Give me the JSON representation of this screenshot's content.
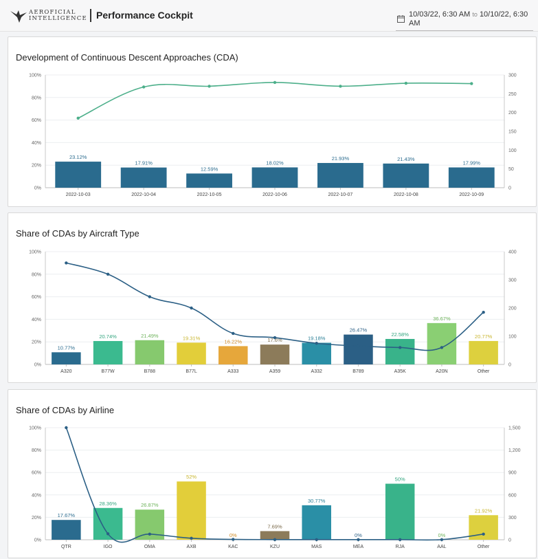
{
  "header": {
    "logo_line1": "AEROFICIAL",
    "logo_line2": "INTELLIGENCE",
    "title": "Performance Cockpit",
    "date_from": "10/03/22, 6:30 AM",
    "date_to_word": "to",
    "date_to": "10/10/22, 6:30 AM",
    "calendar_icon": "calendar-icon"
  },
  "cards": {
    "cda": {
      "title": "Development of Continuous Descent Approaches (CDA)"
    },
    "aircraft": {
      "title": "Share of CDAs by Aircraft Type"
    },
    "airline": {
      "title": "Share of CDAs by Airline"
    }
  },
  "chart_data": [
    {
      "id": "cda",
      "type": "bar",
      "categories": [
        "2022-10-03",
        "2022-10-04",
        "2022-10-05",
        "2022-10-06",
        "2022-10-07",
        "2022-10-08",
        "2022-10-09"
      ],
      "series": [
        {
          "type": "bar",
          "axis": "left",
          "values": [
            23.12,
            17.91,
            12.59,
            18.02,
            21.93,
            21.43,
            17.99
          ],
          "labels": [
            "23.12%",
            "17.91%",
            "12.59%",
            "18.02%",
            "21.93%",
            "21.43%",
            "17.99%"
          ]
        },
        {
          "type": "line",
          "axis": "right",
          "values": [
            185,
            268,
            270,
            280,
            270,
            278,
            277
          ]
        }
      ],
      "ylim_left": [
        0,
        100
      ],
      "yticks_left": [
        "0%",
        "20%",
        "40%",
        "60%",
        "80%",
        "100%"
      ],
      "ylim_right": [
        0,
        300
      ],
      "yticks_right": [
        "0",
        "50",
        "100",
        "150",
        "200",
        "250",
        "300"
      ],
      "bar_colors": [
        "#2a6b8e"
      ],
      "line_color": "#4caf8a"
    },
    {
      "id": "aircraft",
      "type": "bar",
      "categories": [
        "A320",
        "B77W",
        "B788",
        "B77L",
        "A333",
        "A359",
        "A332",
        "B789",
        "A35K",
        "A20N",
        "Other"
      ],
      "series": [
        {
          "type": "bar",
          "axis": "left",
          "values": [
            10.77,
            20.74,
            21.49,
            19.31,
            16.22,
            17.6,
            19.18,
            26.47,
            22.58,
            36.67,
            20.77
          ],
          "labels": [
            "10.77%",
            "20.74%",
            "21.49%",
            "19.31%",
            "16.22%",
            "17.6%",
            "19.18%",
            "26.47%",
            "22.58%",
            "36.67%",
            "20.77%"
          ]
        },
        {
          "type": "line",
          "axis": "right",
          "values": [
            360,
            320,
            240,
            200,
            110,
            95,
            75,
            65,
            60,
            60,
            185
          ]
        }
      ],
      "ylim_left": [
        0,
        100
      ],
      "yticks_left": [
        "0%",
        "20%",
        "40%",
        "60%",
        "80%",
        "100%"
      ],
      "ylim_right": [
        0,
        400
      ],
      "yticks_right": [
        "0",
        "100",
        "200",
        "300",
        "400"
      ],
      "bar_colors": [
        "#2a6b8e",
        "#3bba8f",
        "#86c96e",
        "#e2ce3a",
        "#e6a73b",
        "#8c7b5a",
        "#2a8fa6",
        "#2b5f85",
        "#39b38a",
        "#8acf73",
        "#ddd03e"
      ],
      "label_colors": [
        "#2a6b8e",
        "#33a57f",
        "#6db25a",
        "#c8b52d",
        "#d08a24",
        "#7a6a4a",
        "#2a7f96",
        "#2b5f85",
        "#33a57f",
        "#6db25a",
        "#c8b52d"
      ],
      "line_color": "#2b5f85"
    },
    {
      "id": "airline",
      "type": "bar",
      "categories": [
        "QTR",
        "IGO",
        "OMA",
        "AXB",
        "KAC",
        "KZU",
        "MAS",
        "MEA",
        "RJA",
        "AAL",
        "Other"
      ],
      "series": [
        {
          "type": "bar",
          "axis": "left",
          "values": [
            17.67,
            28.36,
            26.87,
            52,
            0,
            7.69,
            30.77,
            0,
            50,
            0,
            21.92
          ],
          "labels": [
            "17.67%",
            "28.36%",
            "26.87%",
            "52%",
            "0%",
            "7.69%",
            "30.77%",
            "0%",
            "50%",
            "0%",
            "21.92%"
          ]
        },
        {
          "type": "line",
          "axis": "right",
          "values": [
            1500,
            80,
            75,
            20,
            5,
            2,
            2,
            2,
            2,
            2,
            75
          ]
        }
      ],
      "ylim_left": [
        0,
        100
      ],
      "yticks_left": [
        "0%",
        "20%",
        "40%",
        "60%",
        "80%",
        "100%"
      ],
      "ylim_right": [
        0,
        1500
      ],
      "yticks_right": [
        "0",
        "300",
        "600",
        "900",
        "1,200",
        "1,500"
      ],
      "bar_colors": [
        "#2a6b8e",
        "#3bba8f",
        "#86c96e",
        "#e2ce3a",
        "#e6a73b",
        "#8c7b5a",
        "#2a8fa6",
        "#2b5f85",
        "#39b38a",
        "#8acf73",
        "#ddd03e"
      ],
      "label_colors": [
        "#2a6b8e",
        "#33a57f",
        "#6db25a",
        "#c8b52d",
        "#d08a24",
        "#7a6a4a",
        "#2a7f96",
        "#2b5f85",
        "#33a57f",
        "#6db25a",
        "#c8b52d"
      ],
      "line_color": "#2b5f85"
    }
  ]
}
